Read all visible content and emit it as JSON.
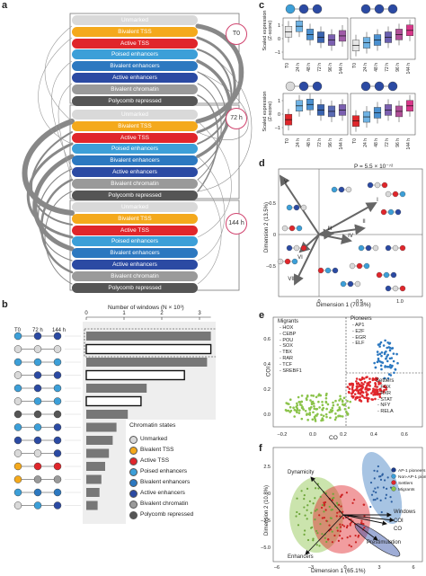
{
  "panels": {
    "a": "a",
    "b": "b",
    "c": "c",
    "d": "d",
    "e": "e",
    "f": "f"
  },
  "panel_a": {
    "timepoints": [
      "T0",
      "72 h",
      "144 h"
    ],
    "states": [
      "Unmarked",
      "Bivalent TSS",
      "Active TSS",
      "Poised enhancers",
      "Bivalent enhancers",
      "Active enhancers",
      "Bivalent chromatin",
      "Polycomb repressed"
    ],
    "colors": {
      "Unmarked": "#d9d9d9",
      "Bivalent TSS": "#f4a91c",
      "Active TSS": "#e0262b",
      "Poised enhancers": "#3c9fd8",
      "Bivalent enhancers": "#2c78c0",
      "Active enhancers": "#2b4aa3",
      "Bivalent chromatin": "#9a9a9a",
      "Polycomb repressed": "#555555"
    }
  },
  "panel_b": {
    "axis_title": "Number of windows (N × 10³)",
    "ticks": [
      "0",
      "1",
      "2",
      "3"
    ],
    "col_labels": [
      "T0",
      "72 h",
      "144 h"
    ],
    "legend_title": "Chromatin states",
    "legend": [
      "Unmarked",
      "Bivalent TSS",
      "Active TSS",
      "Poised enhancers",
      "Bivalent enhancers",
      "Active enhancers",
      "Bivalent chromatin",
      "Polycomb repressed"
    ]
  },
  "panel_c": {
    "ylabel": "Scaled expression\n(Z-score)",
    "x_ticks": [
      "T0",
      "24 h",
      "48 h",
      "72 h",
      "96 h",
      "144 h"
    ],
    "y_ticks_top": [
      "1",
      "0",
      "–1"
    ],
    "y_ticks_bottom": [
      "1",
      "0",
      "–1"
    ]
  },
  "panel_d": {
    "p_value": "P = 5.5 × 10⁻⁷²",
    "xlabel": "Dimension 1 (70.8%)",
    "ylabel": "Dimension 2 (13.5%)",
    "x_ticks": [
      "0",
      "0.5",
      "1.0"
    ],
    "y_ticks": [
      "0.5",
      "0",
      "–0.5"
    ],
    "arrows": [
      "I",
      "II",
      "III",
      "IV",
      "V",
      "VI",
      "VII"
    ]
  },
  "panel_e": {
    "migrants_title": "Migrants",
    "migrants": [
      "- HOX",
      "- CEBP",
      "- POU",
      "- SOX",
      "- TBX",
      "- RAR",
      "- TCF",
      "- SREBF1"
    ],
    "pioneers_title": "Pioneers",
    "pioneers": [
      "- AP1",
      "- E2F",
      "- EGR",
      "- ELF"
    ],
    "settlers_title": "Settlers",
    "settlers": [
      "- FOX",
      "- RXR",
      "- STAT",
      "- NFY",
      "- RELA"
    ],
    "xlabel": "CO",
    "ylabel": "COI",
    "x_ticks": [
      "–0.2",
      "0.0",
      "0.2",
      "0.4",
      "0.6"
    ],
    "y_ticks": [
      "0.6",
      "0.4",
      "0.2",
      "0.0"
    ]
  },
  "panel_f": {
    "xlabel": "Dimension 1 (65.1%)",
    "ylabel": "Dimension 2 (10.8%)",
    "x_ticks": [
      "–6",
      "–3",
      "0",
      "3",
      "6"
    ],
    "y_ticks": [
      "2.5",
      "0",
      "–2.5",
      "–5.0"
    ],
    "vectors": [
      "Dynamicity",
      "Windows",
      "COI",
      "CO",
      "Prestimulation",
      "Enhancers"
    ],
    "legend": [
      "AP-1 pioneers",
      "Non-AP-1 pioneers",
      "Settlers",
      "Migrants"
    ]
  },
  "chart_data": [
    {
      "type": "bar",
      "panel": "b",
      "xlabel": "Number of windows (N × 10³)",
      "xlim": [
        0,
        3.5
      ],
      "categories": [
        "row1",
        "row2",
        "row3",
        "row4",
        "row5",
        "row6",
        "row7",
        "row8",
        "row9",
        "row10",
        "row11",
        "row12",
        "row13",
        "row14"
      ],
      "values": [
        3.3,
        3.3,
        3.2,
        2.6,
        1.6,
        1.45,
        1.1,
        0.8,
        0.7,
        0.6,
        0.5,
        0.4,
        0.35,
        0.3
      ],
      "outlined": [
        false,
        true,
        false,
        true,
        false,
        true,
        false,
        false,
        false,
        false,
        false,
        false,
        false,
        false
      ]
    },
    {
      "type": "box",
      "panel": "c",
      "categories": [
        "T0",
        "24 h",
        "48 h",
        "72 h",
        "96 h",
        "144 h"
      ],
      "ylim": [
        -1.5,
        1.5
      ]
    }
  ]
}
